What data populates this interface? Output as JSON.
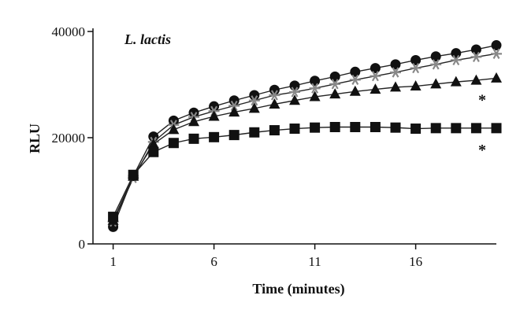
{
  "chart_data": {
    "type": "line",
    "annotation": "L. lactis",
    "xlabel": "Time (minutes)",
    "ylabel": "RLU",
    "xlim": [
      0,
      20
    ],
    "ylim": [
      0,
      40000
    ],
    "xticks": [
      1,
      6,
      11,
      16
    ],
    "yticks": [
      0,
      20000,
      40000
    ],
    "grid": false,
    "legend": "none",
    "x": [
      1,
      2,
      3,
      4,
      5,
      6,
      7,
      8,
      9,
      10,
      11,
      12,
      13,
      14,
      15,
      16,
      17,
      18,
      19,
      20
    ],
    "series": [
      {
        "marker": "circle",
        "color": "#111111",
        "values": [
          3200,
          12800,
          20200,
          23200,
          24700,
          25900,
          27000,
          28000,
          29000,
          29800,
          30700,
          31500,
          32400,
          33100,
          33800,
          34600,
          35300,
          35900,
          36600,
          37400
        ]
      },
      {
        "marker": "star",
        "color": "#888888",
        "values": [
          4200,
          12400,
          19200,
          22400,
          23900,
          25000,
          26000,
          27000,
          28000,
          28600,
          29300,
          30100,
          30900,
          31600,
          32300,
          33100,
          33800,
          34600,
          35200,
          35800
        ]
      },
      {
        "marker": "triangle",
        "color": "#111111",
        "values": [
          4400,
          12700,
          18800,
          21500,
          23000,
          24000,
          24800,
          25500,
          26300,
          27000,
          27700,
          28200,
          28700,
          29100,
          29500,
          29700,
          30100,
          30500,
          30800,
          31200
        ]
      },
      {
        "marker": "square",
        "color": "#111111",
        "values": [
          5100,
          13000,
          17300,
          19000,
          19800,
          20100,
          20500,
          21000,
          21400,
          21700,
          21900,
          22000,
          22000,
          22000,
          21900,
          21700,
          21800,
          21800,
          21800,
          21800
        ]
      }
    ],
    "significance_labels": [
      {
        "text": "*",
        "series_index": 2
      },
      {
        "text": "*",
        "series_index": 3
      }
    ]
  }
}
